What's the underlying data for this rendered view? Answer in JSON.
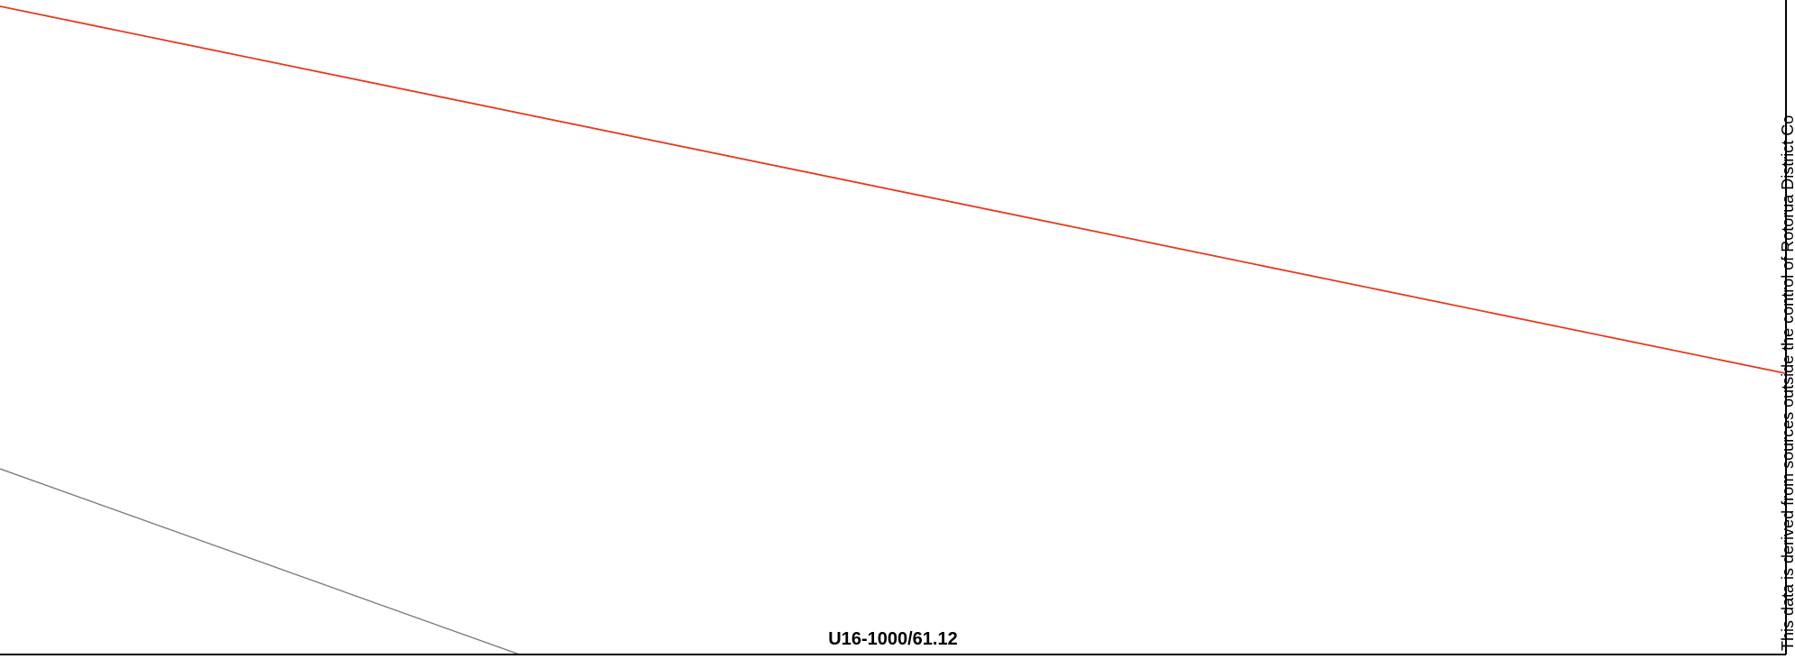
{
  "map": {
    "label": "U16-1000/61.12",
    "disclaimer": "This data is derived from sources outside the control of Rotorua District Co"
  }
}
